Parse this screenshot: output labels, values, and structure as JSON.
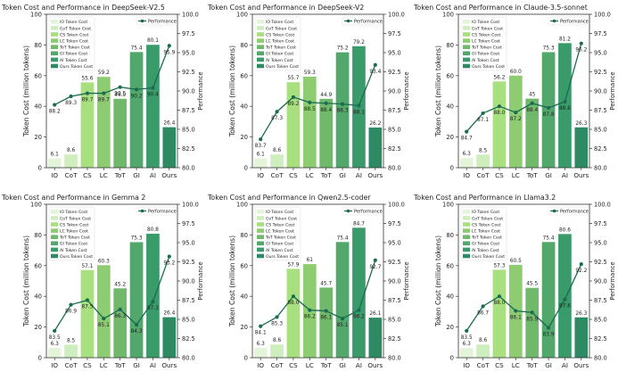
{
  "colors": {
    "bars": [
      "#e3f4d8",
      "#cfeebd",
      "#a8e07f",
      "#8dcc70",
      "#70b86a",
      "#52a86b",
      "#3a9b6a",
      "#2e8a63"
    ],
    "performance_line": "#1b6b52"
  },
  "chart_data": [
    {
      "type": "bar",
      "title": "Token Cost and Performance in DeepSeek-V2.5",
      "categories": [
        "IO",
        "CoT",
        "CS",
        "LC",
        "ToT",
        "GI",
        "AI",
        "Ours"
      ],
      "legend": [
        "IO Token Cost",
        "CoT Token Cost",
        "CS Token Cost",
        "LC Token Cost",
        "ToT Token Cost",
        "GI Token Cost",
        "AI Token Cost",
        "Ours Token Cost"
      ],
      "legend_perf": "Performance",
      "ylabel": "Token Cost (million tokens)",
      "y2label": "Performance",
      "ylim": [
        0,
        100
      ],
      "y2lim": [
        80,
        100
      ],
      "yticks": [
        0,
        20,
        40,
        60,
        80,
        100
      ],
      "y2ticks": [
        80.0,
        82.5,
        85.0,
        87.5,
        90.0,
        92.5,
        95.0,
        97.5,
        100.0
      ],
      "cost": [
        6.1,
        8.6,
        55.6,
        59.2,
        44.9,
        75.4,
        80.1,
        26.4
      ],
      "perf": [
        88.2,
        89.3,
        89.7,
        89.7,
        90.5,
        90.2,
        90.4,
        95.9
      ],
      "cost_labels": [
        "6.1",
        "8.6",
        "55.6",
        "59.2",
        "44.9",
        "75.4",
        "80.1",
        "26.4"
      ],
      "perf_labels": [
        "88.2",
        "89.3",
        "89.7",
        "89.7",
        "90.5",
        "90.2",
        "90.4",
        "95.9"
      ]
    },
    {
      "type": "bar",
      "title": "Token Cost and Performance in DeepSeek-V2",
      "categories": [
        "IO",
        "CoT",
        "CS",
        "LC",
        "ToT",
        "GI",
        "AI",
        "Ours"
      ],
      "legend": [
        "IO Token Cost",
        "CoT Token Cost",
        "CS Token Cost",
        "LC Token Cost",
        "ToT Token Cost",
        "GI Token Cost",
        "AI Token Cost",
        "Ours Token Cost"
      ],
      "legend_perf": "Performance",
      "ylabel": "Token Cost (million tokens)",
      "y2label": "Performance",
      "ylim": [
        0,
        100
      ],
      "y2lim": [
        80,
        100
      ],
      "yticks": [
        0,
        20,
        40,
        60,
        80,
        100
      ],
      "y2ticks": [
        80.0,
        82.5,
        85.0,
        87.5,
        90.0,
        92.5,
        95.0,
        97.5,
        100.0
      ],
      "cost": [
        6.1,
        8.6,
        55.7,
        59.3,
        44.9,
        75.2,
        79.2,
        26.2
      ],
      "perf": [
        83.7,
        87.3,
        89.2,
        88.5,
        88.4,
        88.3,
        88.1,
        93.4
      ],
      "cost_labels": [
        "6.1",
        "8.6",
        "55.7",
        "59.3",
        "44.9",
        "75.2",
        "79.2",
        "26.2"
      ],
      "perf_labels": [
        "83.7",
        "87.3",
        "89.2",
        "88.5",
        "88.4",
        "88.3",
        "88.1",
        "93.4"
      ]
    },
    {
      "type": "bar",
      "title": "Token Cost and Performance in Claude-3.5-sonnet",
      "categories": [
        "IO",
        "CoT",
        "CS",
        "LC",
        "ToT",
        "GI",
        "AI",
        "Ours"
      ],
      "legend": [
        "IO Token Cost",
        "CoT Token Cost",
        "CS Token Cost",
        "LC Token Cost",
        "ToT Token Cost",
        "GI Token Cost",
        "AI Token Cost",
        "Ours Token Cost"
      ],
      "legend_perf": "Performance",
      "ylabel": "Token Cost (million tokens)",
      "y2label": "Performance",
      "ylim": [
        0,
        100
      ],
      "y2lim": [
        80,
        100
      ],
      "yticks": [
        0,
        20,
        40,
        60,
        80,
        100
      ],
      "y2ticks": [
        80.0,
        82.5,
        85.0,
        87.5,
        90.0,
        92.5,
        95.0,
        97.5,
        100.0
      ],
      "cost": [
        6.3,
        8.5,
        56.2,
        60.0,
        45,
        75.3,
        81.2,
        26.3
      ],
      "perf": [
        84.7,
        87.1,
        88.0,
        87.2,
        88.4,
        87.8,
        88.6,
        96.2
      ],
      "cost_labels": [
        "6.3",
        "8.5",
        "56.2",
        "60.0",
        "45",
        "75.3",
        "81.2",
        "26.3"
      ],
      "perf_labels": [
        "84.7",
        "87.1",
        "88.0",
        "87.2",
        "88.4",
        "87.8",
        "88.6",
        "96.2"
      ]
    },
    {
      "type": "bar",
      "title": "Token Cost and Performance in Gemma 2",
      "categories": [
        "IO",
        "CoT",
        "CS",
        "LC",
        "ToT",
        "GI",
        "AI",
        "Ours"
      ],
      "legend": [
        "IO Token Cost",
        "CoT Token Cost",
        "CS Token Cost",
        "LC Token Cost",
        "ToT Token Cost",
        "GI Token Cost",
        "AI Token Cost",
        "Ours Token Cost"
      ],
      "legend_perf": "Performance",
      "ylabel": "Token Cost (million tokens)",
      "y2label": "Performance",
      "ylim": [
        0,
        100
      ],
      "y2lim": [
        80,
        100
      ],
      "yticks": [
        0,
        20,
        40,
        60,
        80,
        100
      ],
      "y2ticks": [
        80.0,
        82.5,
        85.0,
        87.5,
        90.0,
        92.5,
        95.0,
        97.5,
        100.0
      ],
      "cost": [
        6.3,
        8.5,
        57.1,
        60.3,
        45.2,
        75.3,
        80.8,
        26.4
      ],
      "perf": [
        83.5,
        86.9,
        87.5,
        85.1,
        86.3,
        84.3,
        87.3,
        93.2
      ],
      "cost_labels": [
        "6.3",
        "8.5",
        "57.1",
        "60.3",
        "45.2",
        "75.3",
        "80.8",
        "26.4"
      ],
      "perf_labels": [
        "83.5",
        "86.9",
        "87.5",
        "85.1",
        "86.3",
        "84.3",
        "87.3",
        "93.2"
      ]
    },
    {
      "type": "bar",
      "title": "Token Cost and Performance in Qwen2.5-coder",
      "categories": [
        "IO",
        "CoT",
        "CS",
        "LC",
        "ToT",
        "GI",
        "AI",
        "Ours"
      ],
      "legend": [
        "IO Token Cost",
        "CoT Token Cost",
        "CS Token Cost",
        "LC Token Cost",
        "ToT Token Cost",
        "GI Token Cost",
        "AI Token Cost",
        "Ours Token Cost"
      ],
      "legend_perf": "Performance",
      "ylabel": "Token Cost (million tokens)",
      "y2label": "Performance",
      "ylim": [
        0,
        100
      ],
      "y2lim": [
        80,
        100
      ],
      "yticks": [
        0,
        20,
        40,
        60,
        80,
        100
      ],
      "y2ticks": [
        80.0,
        82.5,
        85.0,
        87.5,
        90.0,
        92.5,
        95.0,
        97.5,
        100.0
      ],
      "cost": [
        6.3,
        8.6,
        57.9,
        61,
        45.7,
        75.4,
        84.7,
        26.1
      ],
      "perf": [
        84.1,
        85.3,
        88.0,
        86.2,
        86.1,
        85.1,
        86.2,
        92.7
      ],
      "cost_labels": [
        "6.3",
        "8.6",
        "57.9",
        "61",
        "45.7",
        "75.4",
        "84.7",
        "26.1"
      ],
      "perf_labels": [
        "84.1",
        "85.3",
        "88.0",
        "86.2",
        "86.1",
        "85.1",
        "86.2",
        "92.7"
      ]
    },
    {
      "type": "bar",
      "title": "Token Cost and Performance in Llama3.2",
      "categories": [
        "IO",
        "CoT",
        "CS",
        "LC",
        "ToT",
        "GI",
        "AI",
        "Ours"
      ],
      "legend": [
        "IO Token Cost",
        "CoT Token Cost",
        "CS Token Cost",
        "LC Token Cost",
        "ToT Token Cost",
        "GI Token Cost",
        "AI Token Cost",
        "Ours Token Cost"
      ],
      "legend_perf": "Performance",
      "ylabel": "Token Cost (million tokens)",
      "y2label": "Performance",
      "ylim": [
        0,
        100
      ],
      "y2lim": [
        80,
        100
      ],
      "yticks": [
        0,
        20,
        40,
        60,
        80,
        100
      ],
      "y2ticks": [
        80.0,
        82.5,
        85.0,
        87.5,
        90.0,
        92.5,
        95.0,
        97.5,
        100.0
      ],
      "cost": [
        6.3,
        8.6,
        57.3,
        60.5,
        45.5,
        75.4,
        80.6,
        26.3
      ],
      "perf": [
        83.5,
        86.7,
        88.0,
        86.1,
        85.9,
        83.9,
        87.6,
        92.2
      ],
      "cost_labels": [
        "6.3",
        "8.6",
        "57.3",
        "60.5",
        "45.5",
        "75.4",
        "80.6",
        "26.3"
      ],
      "perf_labels": [
        "83.5",
        "86.7",
        "88.0",
        "86.1",
        "85.9",
        "83.9",
        "87.6",
        "92.2"
      ]
    }
  ]
}
